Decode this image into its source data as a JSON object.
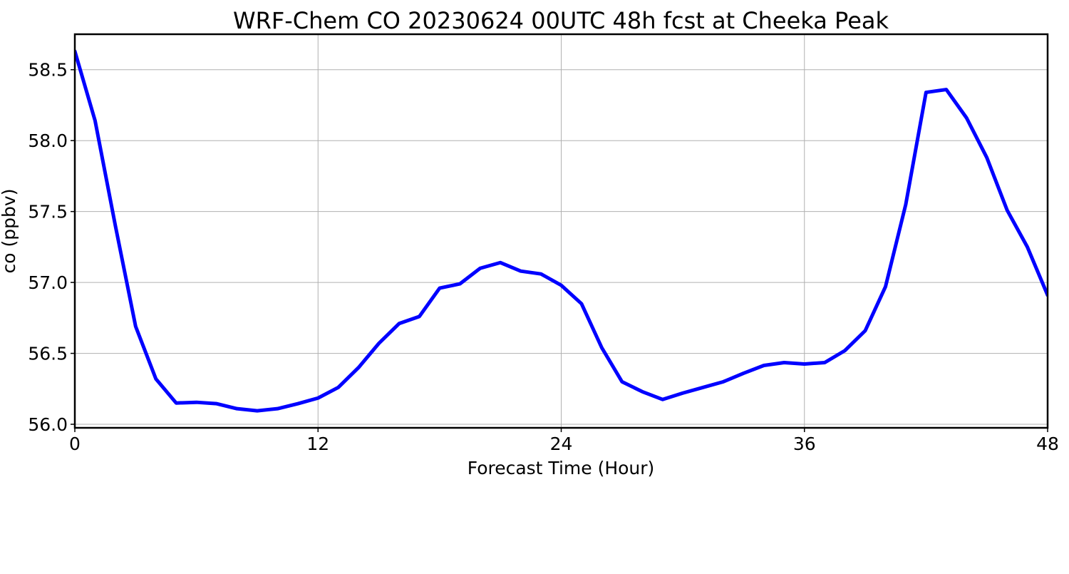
{
  "chart_data": {
    "type": "line",
    "title": "WRF-Chem CO  20230624 00UTC 48h fcst at Cheeka Peak",
    "xlabel": "Forecast Time (Hour)",
    "ylabel": "co  (ppbv)",
    "xlim": [
      0,
      48
    ],
    "ylim": [
      55.975,
      58.75
    ],
    "xticks": [
      0,
      12,
      24,
      36,
      48
    ],
    "xtick_labels": [
      "0",
      "12",
      "24",
      "36",
      "48"
    ],
    "yticks": [
      56.0,
      56.5,
      57.0,
      57.5,
      58.0,
      58.5
    ],
    "ytick_labels": [
      "56.0",
      "56.5",
      "57.0",
      "57.5",
      "58.0",
      "58.5"
    ],
    "grid": true,
    "series": [
      {
        "color": "#0000ff",
        "x": [
          0,
          1,
          2,
          3,
          4,
          5,
          6,
          7,
          8,
          9,
          10,
          11,
          12,
          13,
          14,
          15,
          16,
          17,
          18,
          19,
          20,
          21,
          22,
          23,
          24,
          25,
          26,
          27,
          28,
          29,
          30,
          31,
          32,
          33,
          34,
          35,
          36,
          37,
          38,
          39,
          40,
          41,
          42,
          43,
          44,
          45,
          46,
          47,
          48
        ],
        "y": [
          58.63,
          58.14,
          57.4,
          56.69,
          56.32,
          56.15,
          56.155,
          56.145,
          56.11,
          56.095,
          56.11,
          56.145,
          56.185,
          56.26,
          56.4,
          56.57,
          56.71,
          56.76,
          56.96,
          56.99,
          57.1,
          57.14,
          57.08,
          57.06,
          56.98,
          56.85,
          56.54,
          56.3,
          56.23,
          56.175,
          56.22,
          56.26,
          56.3,
          56.36,
          56.415,
          56.435,
          56.425,
          56.435,
          56.52,
          56.66,
          56.97,
          57.55,
          58.34,
          58.36,
          58.16,
          57.88,
          57.51,
          57.25,
          56.91
        ]
      }
    ]
  }
}
